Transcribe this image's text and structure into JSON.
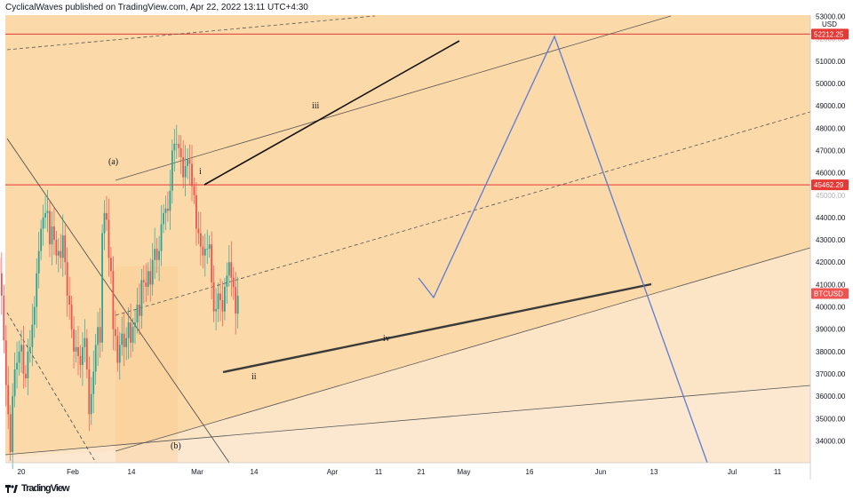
{
  "header": {
    "publisher_line": "CyclicalWaves published on TradingView.com, Apr 22, 2022 13:11 UTC+4:30"
  },
  "footer": {
    "brand": "TradingView",
    "logo_icon": "tradingview-logo-icon"
  },
  "colors": {
    "background_peach": "#fcd9a8",
    "background_light": "#fbe6cc",
    "candle_up": "#26a69a",
    "candle_down": "#ef5350",
    "resistance_line": "#e53935",
    "projection_line": "#5b7bd6",
    "trend_line": "#333333"
  },
  "chart_data": {
    "type": "candlestick",
    "symbol": "BTCUSD",
    "currency": "USD",
    "y_axis": {
      "ticks": [
        53000,
        52000,
        51000,
        50000,
        49000,
        48000,
        47000,
        46000,
        45000,
        44000,
        43000,
        42000,
        41000,
        40000,
        39000,
        38000,
        37000,
        36000,
        35000,
        34000
      ],
      "tick_labels": [
        "53000.00",
        "52000.00",
        "51000.00",
        "50000.00",
        "49000.00",
        "48000.00",
        "47000.00",
        "46000.00",
        "45000.00",
        "44000.00",
        "43000.00",
        "42000.00",
        "41000.00",
        "40000.00",
        "39000.00",
        "38000.00",
        "37000.00",
        "36000.00",
        "35000.00",
        "34000.00"
      ],
      "unit_label": "USD"
    },
    "x_axis": {
      "tick_labels": [
        "20",
        "Feb",
        "14",
        "Mar",
        "14",
        "Apr",
        "11",
        "21",
        "May",
        "16",
        "Jun",
        "13",
        "Jul",
        "11"
      ]
    },
    "price_labels": [
      {
        "value": 52212.25,
        "label": "52212.25",
        "color": "#e53935"
      },
      {
        "value": 45462.29,
        "label": "45462.29",
        "color": "#e53935"
      },
      {
        "value": 40600,
        "label": "BTCUSD",
        "color": "#ef5350"
      }
    ],
    "horizontal_lines": [
      52212.25,
      45462.29
    ],
    "wave_labels": [
      "(a)",
      "i",
      "iii",
      "(b)",
      "ii",
      "iv"
    ],
    "candles_approx_closes": [
      43000,
      42200,
      41500,
      40500,
      38500,
      36500,
      35200,
      33500,
      36000,
      37200,
      37500,
      38000,
      38300,
      37000,
      36800,
      38000,
      38200,
      39200,
      40000,
      41500,
      42500,
      43500,
      44000,
      44200,
      44300,
      42800,
      43600,
      43000,
      42300,
      42500,
      42200,
      43200,
      42000,
      40500,
      40100,
      39000,
      38000,
      38200,
      37800,
      37400,
      38200,
      38600,
      37200,
      35200,
      36100,
      37100,
      38300,
      39100,
      38400,
      43300,
      44200,
      43900,
      42200,
      41600,
      39000,
      38700,
      37500,
      38300,
      38800,
      38200,
      38600,
      39300,
      38400,
      39100,
      39300,
      40100,
      39600,
      41200,
      41100,
      40900,
      41600,
      41000,
      42100,
      42600,
      42100,
      42500,
      43700,
      44200,
      44400,
      44300,
      45200,
      47000,
      47300,
      47300,
      47100,
      46700,
      45800,
      46300,
      46600,
      46400,
      45400,
      45000,
      43500,
      43300,
      42700,
      42300,
      42600,
      42600,
      42800,
      41100,
      39800,
      39900,
      40600,
      40300,
      39800,
      40900,
      41400,
      42000,
      41300,
      40900,
      39700,
      40500
    ]
  }
}
